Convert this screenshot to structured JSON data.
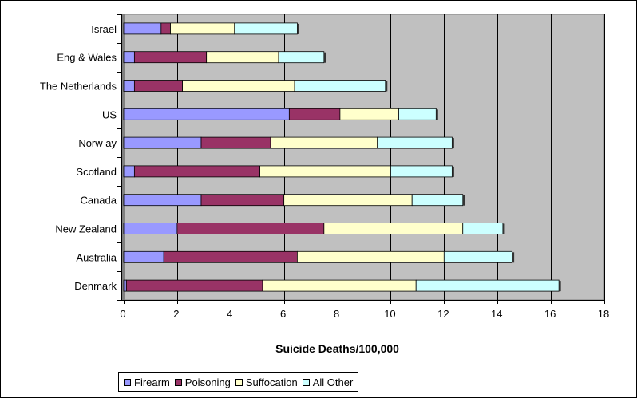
{
  "chart_data": {
    "type": "bar",
    "orientation": "horizontal",
    "stacked": true,
    "categories": [
      "Israel",
      "Eng & Wales",
      "The Netherlands",
      "US",
      "Norw ay",
      "Scotland",
      "Canada",
      "New Zealand",
      "Australia",
      "Denmark"
    ],
    "series": [
      {
        "name": "Firearm",
        "color": "#9999FF",
        "values": [
          1.4,
          0.4,
          0.4,
          6.2,
          2.9,
          0.4,
          2.9,
          2.0,
          1.5,
          0.1
        ]
      },
      {
        "name": "Poisoning",
        "color": "#993366",
        "values": [
          0.35,
          2.7,
          1.8,
          1.9,
          2.6,
          4.7,
          3.1,
          5.5,
          5.0,
          5.1
        ]
      },
      {
        "name": "Suffocation",
        "color": "#FFFFCC",
        "values": [
          2.4,
          2.7,
          4.2,
          2.2,
          4.0,
          4.9,
          4.8,
          5.2,
          5.5,
          5.75
        ]
      },
      {
        "name": "All Other",
        "color": "#CCFFFF",
        "values": [
          2.35,
          1.7,
          3.4,
          1.4,
          2.8,
          2.3,
          1.9,
          1.5,
          2.55,
          5.35
        ]
      }
    ],
    "xlabel": "Suicide Deaths/100,000",
    "ylabel": "",
    "xlim": [
      0,
      18
    ],
    "xticks": [
      0,
      2,
      4,
      6,
      8,
      10,
      12,
      14,
      16,
      18
    ],
    "plot_background": "#C0C0C0",
    "grid": true,
    "legend_position": "bottom"
  }
}
